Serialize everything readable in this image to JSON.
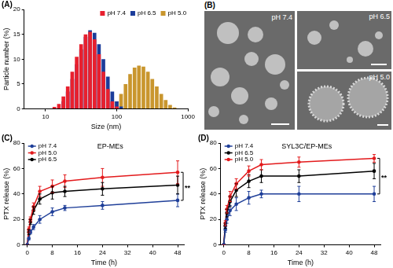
{
  "chart_data": [
    {
      "panel": "(A)",
      "type": "bar",
      "x_label": "Size (nm)",
      "y_label": "Particle number (%)",
      "log": "x",
      "xlim": [
        5,
        1000
      ],
      "xticks": [
        10,
        100,
        1000
      ],
      "ylim": [
        0,
        20
      ],
      "yticks": [
        0,
        5,
        10,
        15,
        20
      ],
      "grid": false,
      "legend": "upper right",
      "x": [
        13.3,
        15.4,
        17.8,
        20.5,
        23.7,
        27.4,
        31.6,
        36.5,
        42.2,
        48.7,
        56.2,
        64.9,
        75,
        86.6,
        100,
        115,
        133,
        154,
        178,
        205,
        237,
        274,
        316,
        365,
        422,
        487,
        562,
        649
      ],
      "series": [
        {
          "name": "pH 7.4",
          "color": "#e8202e",
          "values": [
            0.4,
            1,
            2.5,
            4.5,
            7.5,
            10.5,
            13,
            15,
            15.5,
            14,
            11,
            7.5,
            4,
            1.5,
            0.5,
            null,
            null,
            null,
            null,
            null,
            null,
            null,
            null,
            null,
            null,
            null,
            null,
            null
          ]
        },
        {
          "name": "pH 6.5",
          "color": "#1b3c9a",
          "values": [
            null,
            null,
            1.5,
            3.5,
            6,
            9,
            12,
            14.5,
            15.8,
            15.3,
            13,
            10,
            6.5,
            3.5,
            1.5,
            0.5,
            null,
            null,
            null,
            null,
            null,
            null,
            null,
            null,
            null,
            null,
            null,
            null
          ]
        },
        {
          "name": "pH 5.0",
          "color": "#c9962e",
          "values": [
            null,
            null,
            null,
            null,
            null,
            null,
            null,
            null,
            null,
            null,
            null,
            null,
            null,
            0.5,
            1.5,
            3,
            5,
            7,
            8.3,
            8.7,
            8.5,
            7.5,
            6,
            4.5,
            3,
            1.8,
            0.8,
            0.3
          ]
        }
      ]
    },
    {
      "panel": "(C)",
      "type": "line",
      "title": "EP-MEs",
      "x_label": "Time (h)",
      "y_label": "PTX release (%)",
      "xlim": [
        -1,
        50
      ],
      "xticks": [
        0,
        8,
        16,
        24,
        32,
        40,
        48
      ],
      "ylim": [
        0,
        80
      ],
      "yticks": [
        0,
        20,
        40,
        60,
        80
      ],
      "grid": false,
      "legend": "upper left",
      "marker": "circle",
      "line_style": "solid",
      "x": [
        0,
        0.5,
        1,
        2,
        4,
        8,
        12,
        24,
        48
      ],
      "series": [
        {
          "name": "pH 7.4",
          "color": "#1f3f99",
          "values": [
            0,
            5,
            10,
            14,
            20,
            26,
            29,
            31,
            35
          ],
          "errors": [
            0,
            1,
            1.5,
            2,
            3,
            3,
            2,
            3,
            5
          ]
        },
        {
          "name": "pH 5.0",
          "color": "#e31a1c",
          "values": [
            0,
            12,
            20,
            30,
            42,
            46,
            50,
            53,
            57
          ],
          "errors": [
            0,
            2,
            2,
            3,
            4,
            5,
            5,
            7,
            9
          ]
        },
        {
          "name": "pH 6.5",
          "color": "#000000",
          "values": [
            0,
            10,
            18,
            27,
            36,
            41,
            42,
            44,
            47
          ],
          "errors": [
            0,
            2,
            2,
            3,
            4,
            5,
            4,
            5,
            7
          ]
        }
      ],
      "annotations": [
        {
          "text": "**",
          "x": 48,
          "y": [
            35,
            57
          ]
        }
      ]
    },
    {
      "panel": "(D)",
      "type": "line",
      "title": "SYL3C/EP-MEs",
      "x_label": "Time (h)",
      "y_label": "PTX release (%)",
      "xlim": [
        -1,
        50
      ],
      "xticks": [
        0,
        8,
        16,
        24,
        32,
        40,
        48
      ],
      "ylim": [
        0,
        80
      ],
      "yticks": [
        0,
        20,
        40,
        60,
        80
      ],
      "grid": false,
      "legend": "upper left",
      "marker": "circle",
      "line_style": "solid",
      "x": [
        0,
        0.5,
        1,
        2,
        4,
        8,
        12,
        24,
        48
      ],
      "series": [
        {
          "name": "pH 7.4",
          "color": "#1f3f99",
          "values": [
            0,
            12,
            20,
            27,
            32,
            37,
            40,
            40,
            40
          ],
          "errors": [
            0,
            2,
            3,
            4,
            5,
            5,
            3,
            6,
            6
          ]
        },
        {
          "name": "pH 6.5",
          "color": "#000000",
          "values": [
            0,
            15,
            25,
            34,
            43,
            50,
            54,
            54,
            58
          ],
          "errors": [
            0,
            2,
            3,
            4,
            5,
            5,
            5,
            5,
            6
          ]
        },
        {
          "name": "pH 5.0",
          "color": "#e31a1c",
          "values": [
            0,
            17,
            28,
            38,
            48,
            58,
            63,
            65,
            68
          ],
          "errors": [
            0,
            2,
            3,
            4,
            4,
            4,
            4,
            4,
            3
          ]
        }
      ],
      "annotations": [
        {
          "text": "**",
          "x": 48,
          "y": [
            40,
            68
          ]
        }
      ]
    }
  ],
  "panel_B": {
    "panel": "(B)",
    "images": [
      "pH 7.4",
      "pH 6.5",
      "pH 5.0"
    ]
  }
}
